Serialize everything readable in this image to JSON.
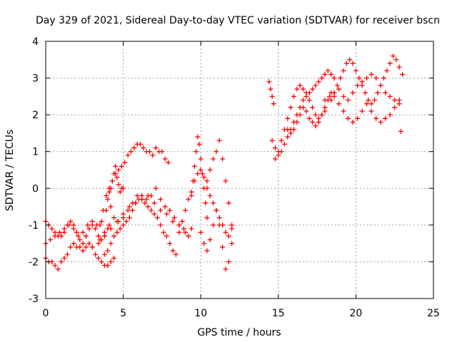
{
  "chart_data": {
    "type": "scatter",
    "title": "Day 329 of 2021, Sidereal Day-to-day VTEC variation (SDTVAR) for receiver bscn",
    "xlabel": "GPS time / hours",
    "ylabel": "SDTVAR / TECUs",
    "xlim": [
      0,
      25
    ],
    "ylim": [
      -3,
      4
    ],
    "xticks": [
      "0",
      "5",
      "10",
      "15",
      "20",
      "25"
    ],
    "yticks": [
      "-3",
      "-2",
      "-1",
      "0",
      "1",
      "2",
      "3",
      "4"
    ],
    "grid": true,
    "marker": "+",
    "color": "#ff0000",
    "series": [
      {
        "x": [
          0.0,
          0.2,
          0.4,
          0.6,
          0.8,
          1.0,
          1.2,
          1.4,
          1.6,
          1.8,
          2.0,
          2.2,
          2.4,
          2.6,
          2.8,
          3.0,
          3.2,
          3.4,
          3.6,
          3.8,
          4.0,
          4.2,
          4.4
        ],
        "y": [
          -1.9,
          -2.0,
          -2.0,
          -2.1,
          -2.2,
          -2.0,
          -1.9,
          -1.8,
          -1.6,
          -1.5,
          -1.6,
          -1.6,
          -1.7,
          -1.6,
          -1.5,
          -1.6,
          -1.8,
          -1.9,
          -2.0,
          -2.1,
          -2.1,
          -2.0,
          -1.9
        ]
      },
      {
        "x": [
          0.0,
          0.2,
          0.4,
          0.6,
          0.8,
          1.0,
          1.2,
          1.4,
          1.6,
          1.8,
          2.0,
          2.2,
          2.4,
          2.6,
          2.8,
          3.0,
          3.2,
          3.4,
          3.6,
          3.8,
          4.0
        ],
        "y": [
          -0.9,
          -1.0,
          -1.1,
          -1.2,
          -1.3,
          -1.3,
          -1.2,
          -1.0,
          -0.9,
          -1.0,
          -1.2,
          -1.4,
          -1.5,
          -1.3,
          -1.1,
          -1.0,
          -1.1,
          -1.3,
          -1.4,
          -1.3,
          -1.1
        ]
      },
      {
        "x": [
          0.0,
          0.3,
          0.6,
          0.9,
          1.2,
          1.5,
          1.8,
          2.1,
          2.4,
          2.7,
          3.0,
          3.3,
          3.6,
          3.9,
          4.2
        ],
        "y": [
          -1.5,
          -1.4,
          -1.3,
          -1.2,
          -1.1,
          -1.0,
          -1.1,
          -1.3,
          -1.2,
          -1.0,
          -0.9,
          -1.0,
          -0.9,
          -0.6,
          -0.5
        ]
      },
      {
        "x": [
          3.5,
          3.7,
          3.9,
          4.1,
          4.3,
          4.5,
          4.7,
          4.9,
          5.1,
          5.3,
          5.5,
          5.7,
          5.9,
          6.1,
          6.3,
          6.5,
          6.7,
          6.9,
          7.1,
          7.3,
          7.5,
          7.7,
          7.9
        ],
        "y": [
          -1.0,
          -0.6,
          -0.2,
          0.0,
          0.2,
          0.4,
          0.5,
          0.6,
          0.7,
          0.9,
          1.0,
          1.1,
          1.2,
          1.2,
          1.1,
          1.0,
          1.0,
          0.9,
          1.1,
          1.0,
          1.0,
          0.8,
          0.7
        ]
      },
      {
        "x": [
          4.0,
          4.1,
          4.2,
          4.3,
          4.4,
          4.5,
          4.6,
          4.7,
          4.8,
          4.9,
          5.0
        ],
        "y": [
          -0.3,
          -0.1,
          0.0,
          0.2,
          0.4,
          0.6,
          0.3,
          0.1,
          -0.1,
          0.0,
          0.0
        ]
      },
      {
        "x": [
          3.8,
          4.0,
          4.2,
          4.4,
          4.6,
          4.8,
          5.0,
          5.2,
          5.4,
          5.6,
          5.8,
          6.0,
          6.2,
          6.4,
          6.6,
          6.8,
          7.0,
          7.2,
          7.4,
          7.6,
          7.8,
          8.0,
          8.2,
          8.4
        ],
        "y": [
          -1.8,
          -1.7,
          -1.5,
          -1.3,
          -1.2,
          -1.1,
          -1.0,
          -0.9,
          -0.8,
          -0.6,
          -0.4,
          -0.3,
          -0.3,
          -0.4,
          -0.5,
          -0.6,
          -0.7,
          -0.8,
          -1.0,
          -1.2,
          -1.3,
          -1.5,
          -1.7,
          -1.8
        ]
      },
      {
        "x": [
          3.5,
          3.8,
          4.1,
          4.4,
          4.7,
          5.0,
          5.3,
          5.6,
          5.9,
          6.2,
          6.5,
          6.8,
          7.1,
          7.4,
          7.7,
          8.0,
          8.3,
          8.6,
          8.9,
          9.2
        ],
        "y": [
          -1.4,
          -1.2,
          -1.0,
          -0.8,
          -0.9,
          -0.8,
          -0.6,
          -0.4,
          -0.2,
          -0.2,
          -0.3,
          -0.2,
          0.0,
          -0.3,
          -0.5,
          -0.6,
          -0.8,
          -1.0,
          -1.1,
          -1.3
        ]
      },
      {
        "x": [
          3.0,
          3.4,
          3.8,
          4.2,
          4.6,
          5.0,
          5.4,
          5.8,
          6.2,
          6.6,
          7.0,
          7.4,
          7.8,
          8.2,
          8.6,
          9.0,
          9.4
        ],
        "y": [
          -1.6,
          -1.5,
          -1.3,
          -1.1,
          -0.9,
          -0.7,
          -0.5,
          -0.4,
          -0.3,
          -0.2,
          -0.4,
          -0.6,
          -0.7,
          -0.9,
          -1.0,
          -1.2,
          -1.1
        ]
      },
      {
        "x": [
          8.6,
          8.8,
          9.0,
          9.2,
          9.4,
          9.6,
          9.8,
          10.0,
          10.2,
          10.4,
          10.6,
          10.8,
          11.0,
          11.2,
          11.4,
          11.6,
          11.8,
          12.0
        ],
        "y": [
          -1.2,
          -0.9,
          -0.6,
          -0.3,
          -0.1,
          0.2,
          0.4,
          0.5,
          0.3,
          0.0,
          -0.2,
          -0.4,
          -0.6,
          -0.8,
          -1.0,
          -1.2,
          -1.3,
          -1.1
        ]
      },
      {
        "x": [
          9.4,
          9.5,
          9.6,
          9.7,
          9.8,
          9.9,
          10.0,
          10.1,
          10.2,
          10.3,
          10.4
        ],
        "y": [
          -0.2,
          0.2,
          0.6,
          1.0,
          1.4,
          1.2,
          0.8,
          0.4,
          0.0,
          -0.4,
          -0.8
        ]
      },
      {
        "x": [
          10.4,
          10.6,
          10.8,
          11.0,
          11.2,
          11.4,
          11.6,
          11.8,
          12.0
        ],
        "y": [
          0.2,
          0.5,
          0.8,
          1.0,
          1.3,
          0.8,
          0.2,
          -0.4,
          -1.0
        ]
      },
      {
        "x": [
          10.0,
          10.2,
          10.4,
          10.6,
          10.8,
          11.0,
          11.2,
          11.4,
          11.6,
          11.8,
          12.0
        ],
        "y": [
          -1.2,
          -1.5,
          -1.7,
          -1.4,
          -1.0,
          -0.6,
          -1.0,
          -1.6,
          -2.2,
          -2.0,
          -1.5
        ]
      },
      {
        "x": [
          14.4,
          14.5,
          14.6,
          14.7
        ],
        "y": [
          2.9,
          2.7,
          2.5,
          2.3
        ]
      },
      {
        "x": [
          14.6,
          14.8,
          15.0,
          15.2,
          15.4,
          15.6,
          15.8,
          16.0,
          16.2,
          16.4,
          16.6,
          16.8,
          17.0,
          17.2,
          17.4,
          17.6,
          17.8,
          18.0,
          18.2,
          18.4,
          18.6
        ],
        "y": [
          1.3,
          1.1,
          0.9,
          1.0,
          1.2,
          1.4,
          1.6,
          1.8,
          2.0,
          2.2,
          2.4,
          2.5,
          2.6,
          2.7,
          2.8,
          2.9,
          3.0,
          3.1,
          3.2,
          3.1,
          3.0
        ]
      },
      {
        "x": [
          14.8,
          15.0,
          15.2,
          15.4,
          15.6,
          15.8,
          16.0,
          16.2,
          16.4,
          16.6,
          16.8,
          17.0,
          17.2,
          17.4,
          17.6,
          17.8,
          18.0,
          18.2,
          18.4
        ],
        "y": [
          0.8,
          1.0,
          1.3,
          1.6,
          1.9,
          2.2,
          2.5,
          2.7,
          2.8,
          2.7,
          2.6,
          2.4,
          2.2,
          2.0,
          1.9,
          2.0,
          2.2,
          2.4,
          2.6
        ]
      },
      {
        "x": [
          15.6,
          15.8,
          16.0,
          16.2,
          16.4,
          16.6,
          16.8,
          17.0,
          17.2,
          17.4,
          17.6,
          17.8,
          18.0
        ],
        "y": [
          1.6,
          1.5,
          1.6,
          1.8,
          2.0,
          2.2,
          2.1,
          1.9,
          1.8,
          1.7,
          1.8,
          2.0,
          2.1
        ]
      },
      {
        "x": [
          18.4,
          18.6,
          18.8,
          19.0,
          19.2,
          19.4,
          19.6,
          19.8,
          20.0,
          20.2,
          20.4,
          20.6,
          20.8,
          21.0,
          21.2,
          21.4,
          21.6,
          21.8,
          22.0,
          22.2,
          22.4,
          22.6,
          22.8,
          23.0
        ],
        "y": [
          2.4,
          2.6,
          2.8,
          3.0,
          3.2,
          3.4,
          3.5,
          3.4,
          3.2,
          3.0,
          2.8,
          2.6,
          2.4,
          2.3,
          2.4,
          2.6,
          2.8,
          3.0,
          3.2,
          3.4,
          3.6,
          3.5,
          3.3,
          3.1
        ]
      },
      {
        "x": [
          18.0,
          18.3,
          18.6,
          18.9,
          19.2,
          19.5,
          19.8,
          20.1,
          20.4,
          20.7,
          21.0,
          21.3,
          21.6,
          21.9,
          22.2,
          22.5,
          22.8
        ],
        "y": [
          2.4,
          2.5,
          2.6,
          2.7,
          2.5,
          2.4,
          2.6,
          2.8,
          2.9,
          3.0,
          3.1,
          3.0,
          2.8,
          2.6,
          2.5,
          2.4,
          2.3
        ]
      },
      {
        "x": [
          18.6,
          18.9,
          19.2,
          19.5,
          19.8,
          20.1,
          20.4,
          20.7,
          21.0,
          21.3,
          21.6,
          21.9,
          22.2,
          22.5,
          22.8
        ],
        "y": [
          2.5,
          2.3,
          2.1,
          1.9,
          1.8,
          1.9,
          2.1,
          2.3,
          2.1,
          1.9,
          1.8,
          1.9,
          2.0,
          2.2,
          2.4
        ]
      },
      {
        "x": [
          22.9
        ],
        "y": [
          1.55
        ]
      }
    ]
  }
}
